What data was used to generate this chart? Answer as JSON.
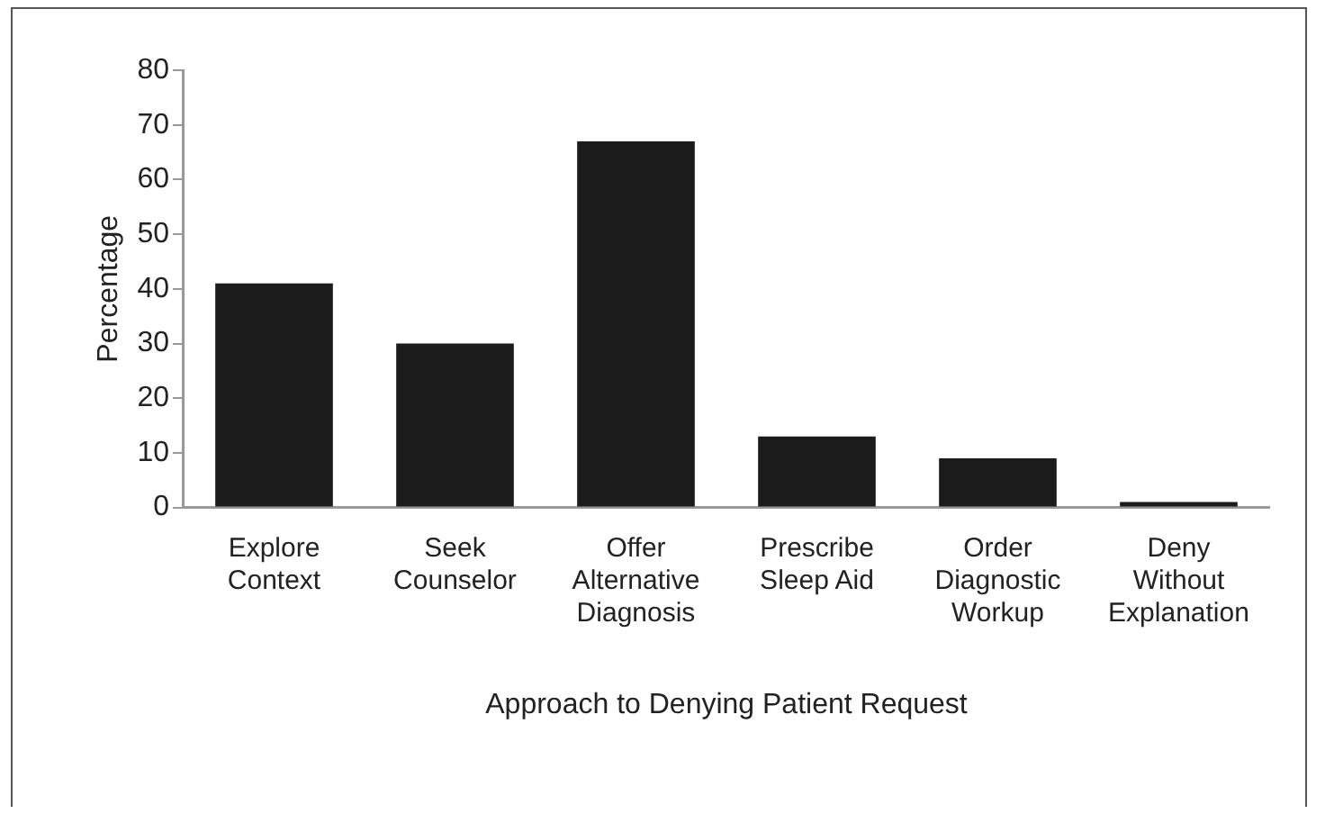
{
  "chart_data": {
    "type": "bar",
    "xlabel": "Approach to Denying Patient Request",
    "ylabel": "Percentage",
    "categories": [
      "Explore\nContext",
      "Seek\nCounselor",
      "Offer\nAlternative\nDiagnosis",
      "Prescribe\nSleep Aid",
      "Order\nDiagnostic\nWorkup",
      "Deny\nWithout\nExplanation"
    ],
    "values": [
      41,
      30,
      67,
      13,
      9,
      1
    ],
    "color": "#1b1b1b",
    "ylim": [
      0,
      80
    ],
    "yticks": [
      0,
      10,
      20,
      30,
      40,
      50,
      60,
      70,
      80
    ],
    "grid": false,
    "legend": false
  }
}
